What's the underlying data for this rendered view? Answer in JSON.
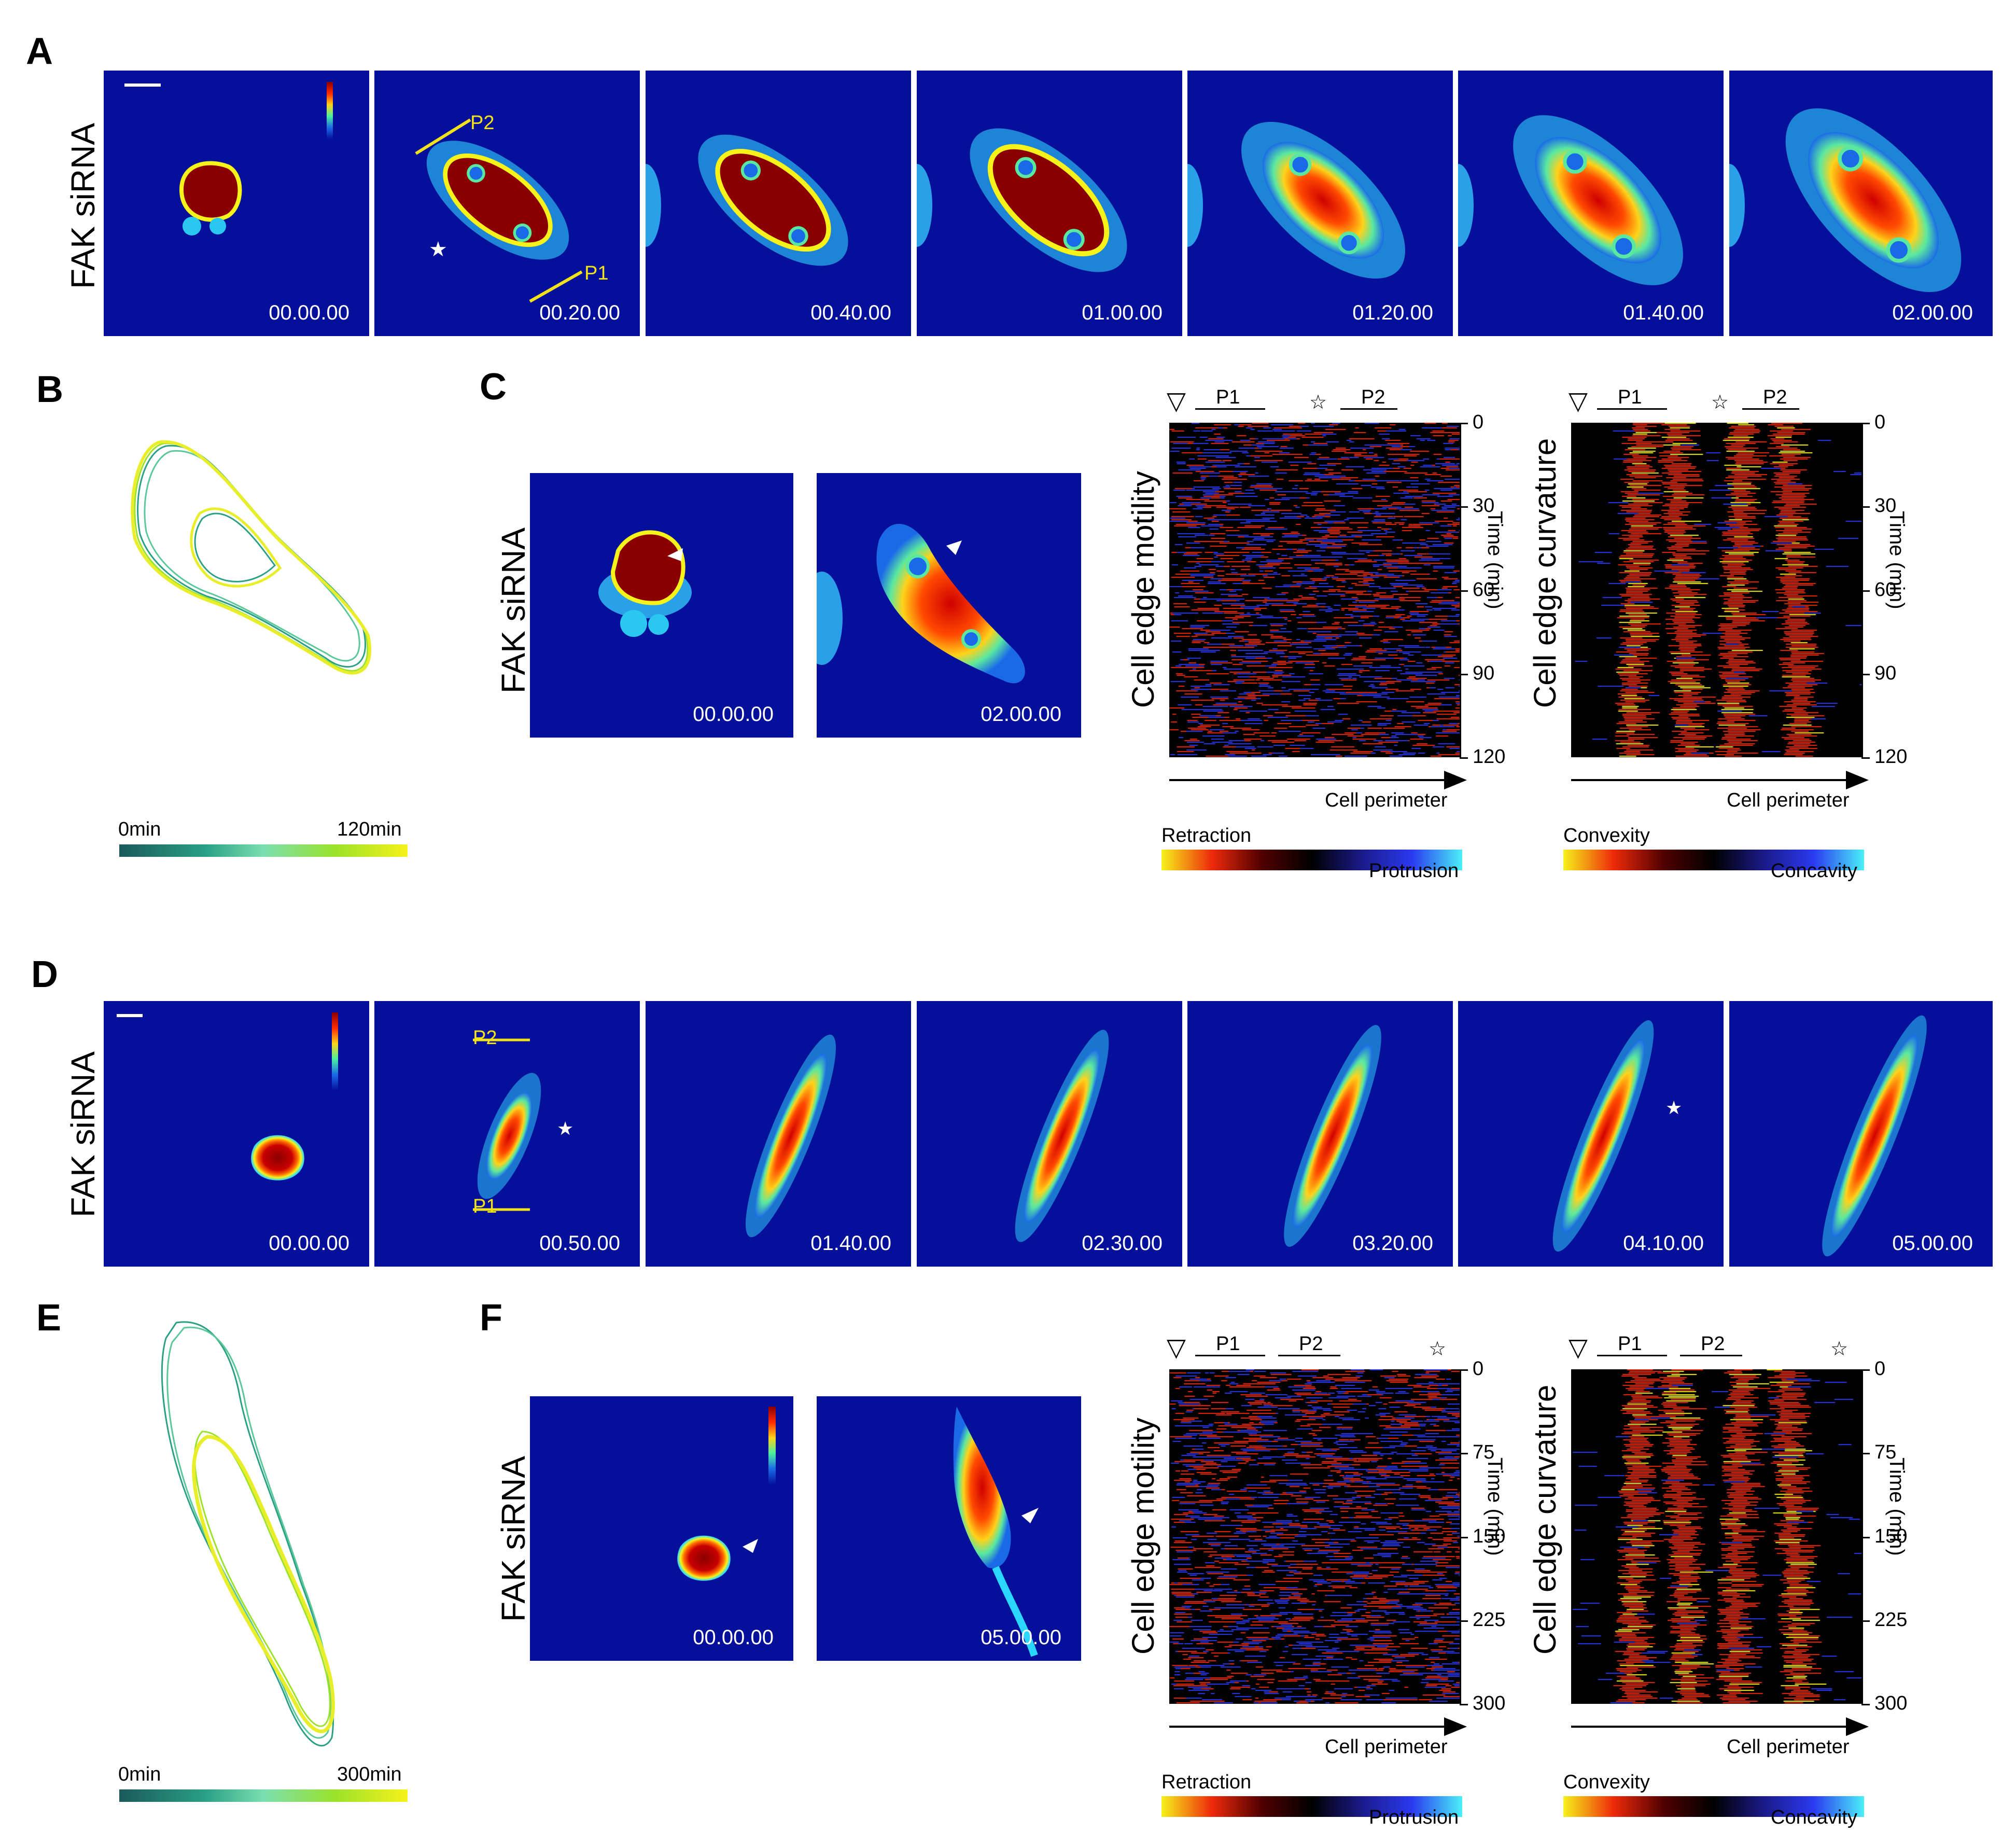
{
  "colors": {
    "micro_bg": "#05109a",
    "gradient_time": [
      "#1a5a5a",
      "#2aa085",
      "#7adfb0",
      "#9be22a",
      "#f6f21a"
    ],
    "gradient_motility": [
      "#f6f21a",
      "#ee2a0a",
      "#500000",
      "#000000",
      "#1a1a8a",
      "#2a3af0",
      "#4af0f8"
    ],
    "gradient_curvature": [
      "#f6f21a",
      "#ee2a0a",
      "#500000",
      "#000000",
      "#1a1a8a",
      "#2a3af0",
      "#4af0f8"
    ],
    "annotation": "#f2e21b"
  },
  "panels": {
    "A": {
      "label": "A",
      "row_label": "FAK siRNA",
      "timestamps": [
        "00.00.00",
        "00.20.00",
        "00.40.00",
        "01.00.00",
        "01.20.00",
        "01.40.00",
        "02.00.00"
      ],
      "annotations": {
        "p1": "P1",
        "p2": "P2",
        "star": "★"
      }
    },
    "B": {
      "label": "B",
      "scale_start": "0min",
      "scale_end": "120min"
    },
    "C": {
      "label": "C",
      "row_label": "FAK siRNA",
      "timestamps": [
        "00.00.00",
        "02.00.00"
      ],
      "motility": {
        "ylabel": "Cell edge motility",
        "time_label": "Time (min)",
        "ticks": [
          "0",
          "30",
          "60",
          "90",
          "120"
        ],
        "x_label": "Cell perimeter",
        "p1": "P1",
        "p2": "P2",
        "star": "☆",
        "tri": "▽",
        "legend_left": "Retraction",
        "legend_right": "Protrusion"
      },
      "curvature": {
        "ylabel": "Cell edge curvature",
        "time_label": "Time (min)",
        "ticks": [
          "0",
          "30",
          "60",
          "90",
          "120"
        ],
        "x_label": "Cell perimeter",
        "p1": "P1",
        "p2": "P2",
        "star": "☆",
        "tri": "▽",
        "legend_left": "Convexity",
        "legend_right": "Concavity"
      }
    },
    "D": {
      "label": "D",
      "row_label": "FAK siRNA",
      "timestamps": [
        "00.00.00",
        "00.50.00",
        "01.40.00",
        "02.30.00",
        "03.20.00",
        "04.10.00",
        "05.00.00"
      ],
      "annotations": {
        "p1": "P1",
        "p2": "P2",
        "star": "★"
      }
    },
    "E": {
      "label": "E",
      "scale_start": "0min",
      "scale_end": "300min"
    },
    "F": {
      "label": "F",
      "row_label": "FAK siRNA",
      "timestamps": [
        "00.00.00",
        "05.00.00"
      ],
      "motility": {
        "ylabel": "Cell edge motility",
        "time_label": "Time (min)",
        "ticks": [
          "0",
          "75",
          "150",
          "225",
          "300"
        ],
        "x_label": "Cell perimeter",
        "p1": "P1",
        "p2": "P2",
        "star": "☆",
        "tri": "▽",
        "legend_left": "Retraction",
        "legend_right": "Protrusion"
      },
      "curvature": {
        "ylabel": "Cell edge curvature",
        "time_label": "Time (min)",
        "ticks": [
          "0",
          "75",
          "150",
          "225",
          "300"
        ],
        "x_label": "Cell perimeter",
        "p1": "P1",
        "p2": "P2",
        "star": "☆",
        "tri": "▽",
        "legend_left": "Convexity",
        "legend_right": "Concavity"
      }
    }
  }
}
